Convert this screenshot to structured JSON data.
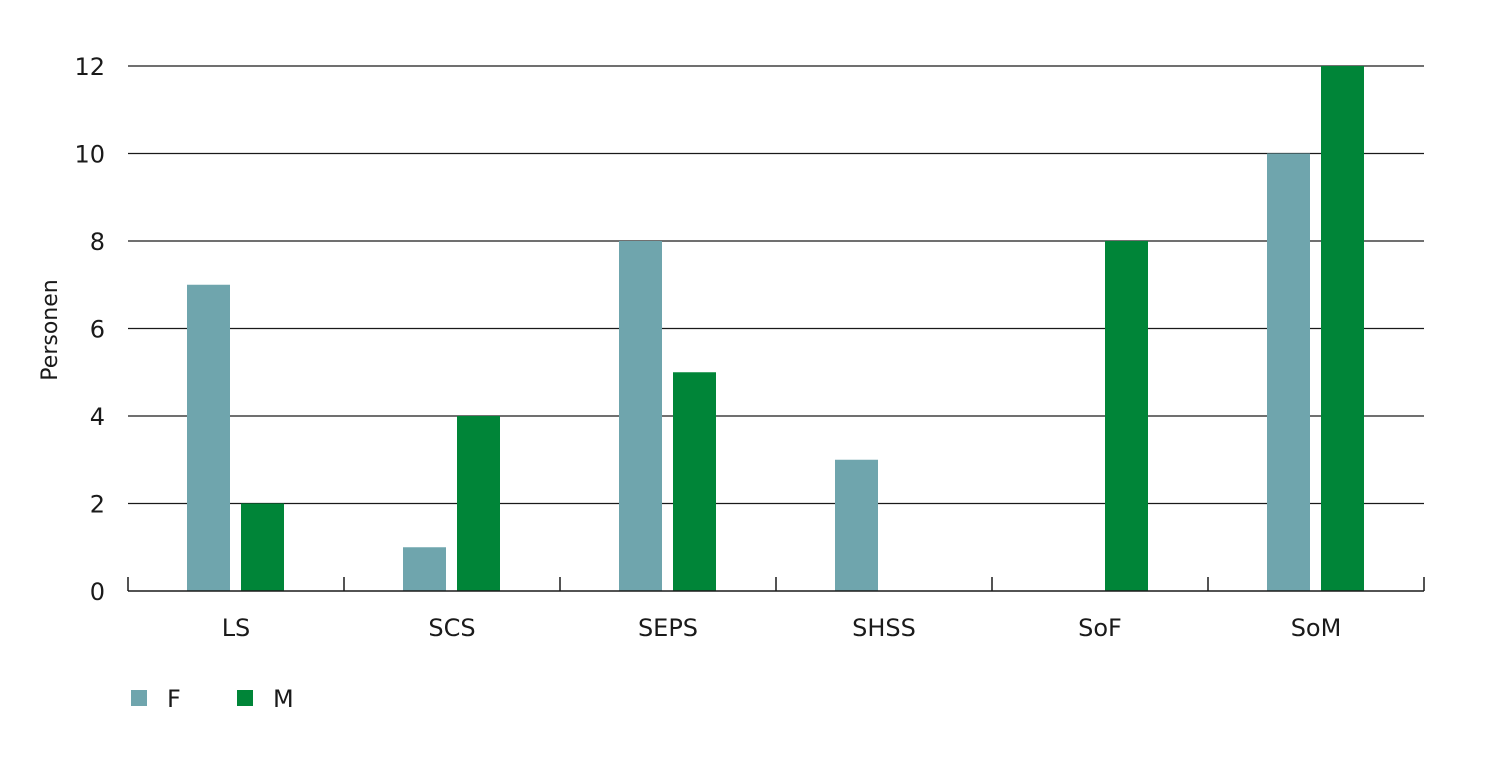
{
  "chart_data": {
    "type": "bar",
    "title": "",
    "xlabel": "",
    "ylabel": "Personen",
    "ylim": [
      0,
      12
    ],
    "yticks": [
      "0",
      "2",
      "4",
      "6",
      "8",
      "10",
      "12"
    ],
    "grid": true,
    "legend_placement": "bottom-left",
    "categories": [
      "LS",
      "SCS",
      "SEPS",
      "SHSS",
      "SoF",
      "SoM"
    ],
    "series": [
      {
        "name": "F",
        "color": "#6fa5ad",
        "values": [
          7,
          1,
          8,
          3,
          0,
          10
        ]
      },
      {
        "name": "M",
        "color": "#008538",
        "values": [
          2,
          4,
          5,
          0,
          8,
          12
        ]
      }
    ]
  }
}
